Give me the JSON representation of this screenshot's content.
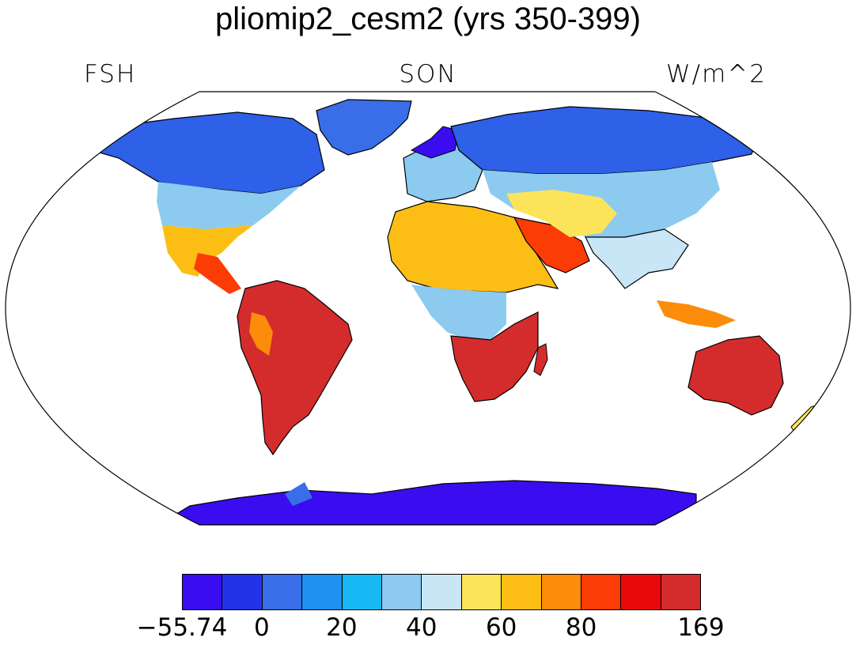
{
  "title": "pliomip2_cesm2 (yrs 350-399)",
  "left_label": "FSH",
  "center_label": "SON",
  "right_label": "W/m^2",
  "colorbar": {
    "colors": [
      "#3a0df0",
      "#2433e8",
      "#3a6ee8",
      "#1e90f0",
      "#18b8f5",
      "#8ccaf0",
      "#c8e6f5",
      "#fce45a",
      "#fcbe14",
      "#fc8c0a",
      "#fc3c05",
      "#e80a0a",
      "#d42c2c"
    ],
    "labels": [
      "−55.74",
      "0",
      "20",
      "40",
      "60",
      "80",
      "169"
    ]
  },
  "legend_values": {
    "min": -55.74,
    "max": 169,
    "levels": [
      0,
      10,
      20,
      30,
      40,
      50,
      60,
      70,
      80,
      90,
      100
    ]
  },
  "map": {
    "projection": "Robinson",
    "land_fill": "#ffffff"
  }
}
